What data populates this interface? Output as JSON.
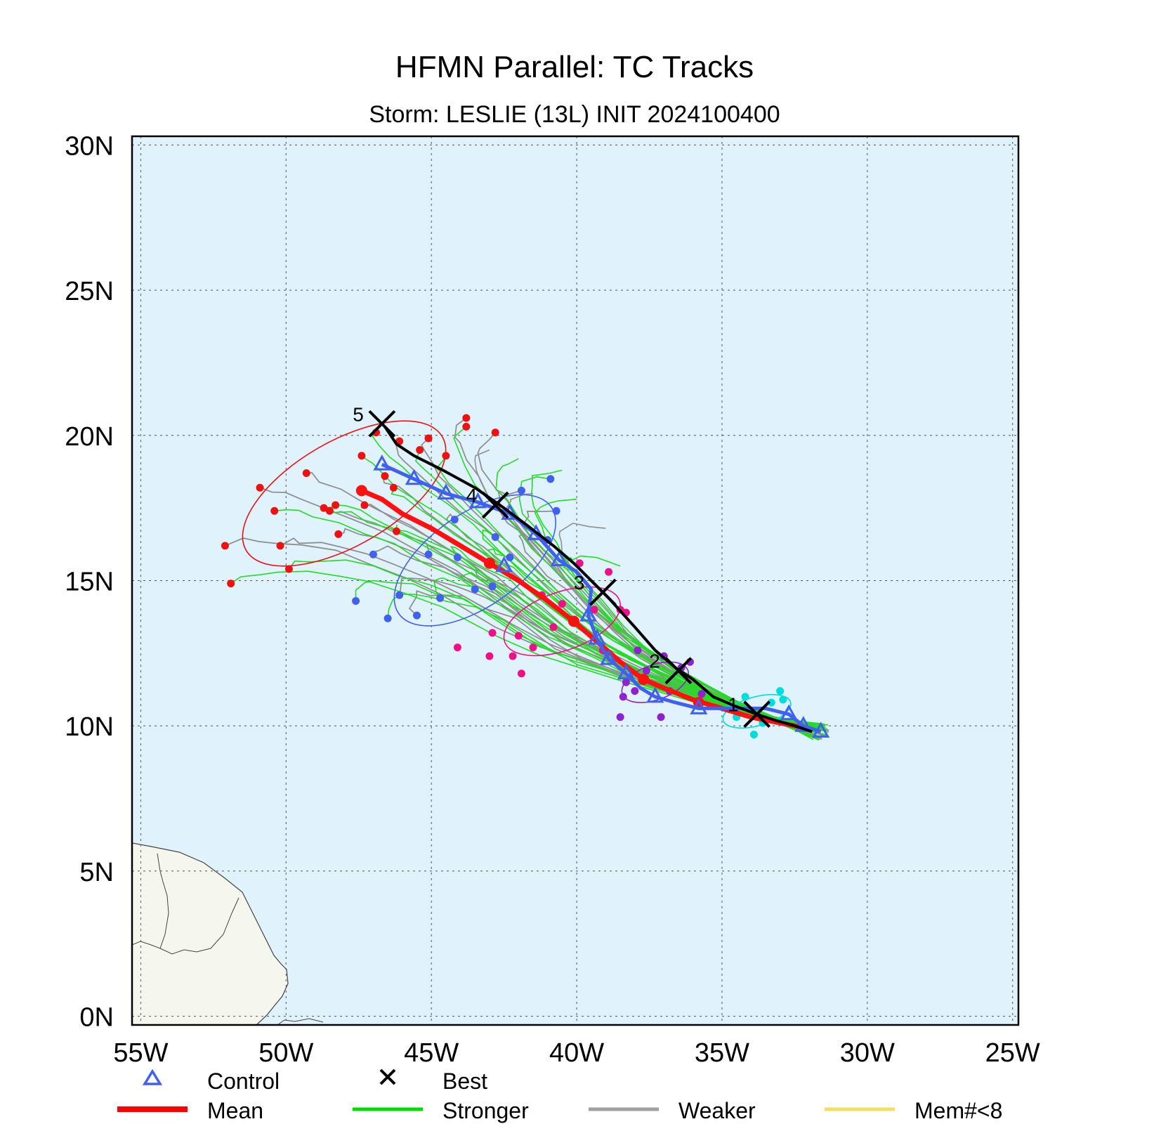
{
  "title": "HFMN Parallel: TC Tracks",
  "subtitle": "Storm: LESLIE (13L) INIT 2024100400",
  "lon_ticks": [
    {
      "value": -55,
      "label": "55W"
    },
    {
      "value": -50,
      "label": "50W"
    },
    {
      "value": -45,
      "label": "45W"
    },
    {
      "value": -40,
      "label": "40W"
    },
    {
      "value": -35,
      "label": "35W"
    },
    {
      "value": -30,
      "label": "30W"
    },
    {
      "value": -25,
      "label": "25W"
    }
  ],
  "lat_ticks": [
    {
      "value": 0,
      "label": "0N"
    },
    {
      "value": 5,
      "label": "5N"
    },
    {
      "value": 10,
      "label": "10N"
    },
    {
      "value": 15,
      "label": "15N"
    },
    {
      "value": 20,
      "label": "20N"
    },
    {
      "value": 25,
      "label": "25N"
    },
    {
      "value": 30,
      "label": "30N"
    }
  ],
  "legend": [
    {
      "key": "control",
      "label": "Control",
      "symbol": "triangle",
      "color": "#4060f0"
    },
    {
      "key": "best",
      "label": "Best",
      "symbol": "x",
      "color": "#000000"
    },
    {
      "key": "mean",
      "label": "Mean",
      "symbol": "line",
      "color": "#ff0000"
    },
    {
      "key": "stronger",
      "label": "Stronger",
      "symbol": "line",
      "color": "#00dd00"
    },
    {
      "key": "weaker",
      "label": "Weaker",
      "symbol": "line",
      "color": "#a0a0a0"
    },
    {
      "key": "mem",
      "label": "Mem#<8",
      "symbol": "line",
      "color": "#f0e060"
    }
  ],
  "colors": {
    "ocean": "#e0f2fc",
    "land": "#f5f7ee",
    "grid": "#555555",
    "day1": "#00dddd",
    "day2": "#9020d0",
    "day3": "#ee1088",
    "day4": "#4060f0",
    "day5": "#ee1111"
  },
  "chart_data": {
    "type": "map-tracks",
    "lon_range": [
      -55.3,
      -24.8
    ],
    "lat_range": [
      -0.3,
      30.3
    ],
    "grid": true,
    "best_track": {
      "points": [
        [
          -31.9,
          9.8
        ],
        [
          -32.5,
          10.0
        ],
        [
          -33.2,
          10.2
        ],
        [
          -33.8,
          10.4
        ],
        [
          -34.6,
          10.7
        ],
        [
          -35.3,
          11.0
        ],
        [
          -36.0,
          11.6
        ],
        [
          -36.6,
          12.0
        ],
        [
          -37.3,
          12.6
        ],
        [
          -38.0,
          13.4
        ],
        [
          -38.9,
          14.4
        ],
        [
          -39.5,
          15.0
        ],
        [
          -40.1,
          15.6
        ],
        [
          -40.8,
          16.2
        ],
        [
          -41.7,
          16.9
        ],
        [
          -42.5,
          17.5
        ],
        [
          -43.5,
          18.2
        ],
        [
          -44.6,
          18.8
        ],
        [
          -45.6,
          19.3
        ],
        [
          -46.2,
          19.7
        ],
        [
          -46.6,
          20.3
        ]
      ],
      "day_marks": [
        {
          "label": "1",
          "lon": -33.8,
          "lat": 10.4
        },
        {
          "label": "2",
          "lon": -36.5,
          "lat": 11.9
        },
        {
          "label": "3",
          "lon": -39.1,
          "lat": 14.6
        },
        {
          "label": "4",
          "lon": -42.8,
          "lat": 17.6
        },
        {
          "label": "5",
          "lon": -46.7,
          "lat": 20.4
        }
      ]
    },
    "control_track": {
      "points": [
        [
          -31.6,
          9.8
        ],
        [
          -32.2,
          10.0
        ],
        [
          -32.7,
          10.4
        ],
        [
          -33.5,
          10.6
        ],
        [
          -34.4,
          10.6
        ],
        [
          -35.1,
          10.6
        ],
        [
          -35.8,
          10.6
        ],
        [
          -36.6,
          10.8
        ],
        [
          -37.3,
          11.0
        ],
        [
          -37.8,
          11.3
        ],
        [
          -38.3,
          11.8
        ],
        [
          -38.9,
          12.3
        ],
        [
          -39.3,
          13.0
        ],
        [
          -39.6,
          13.8
        ],
        [
          -39.5,
          14.7
        ],
        [
          -40.0,
          15.3
        ],
        [
          -40.6,
          15.7
        ],
        [
          -41.4,
          16.6
        ],
        [
          -42.3,
          17.3
        ],
        [
          -43.4,
          17.7
        ],
        [
          -44.5,
          18.0
        ],
        [
          -45.6,
          18.5
        ],
        [
          -46.7,
          19.0
        ]
      ],
      "markers": [
        [
          -31.6,
          9.8
        ],
        [
          -32.2,
          10.0
        ],
        [
          -32.7,
          10.4
        ],
        [
          -35.8,
          10.6
        ],
        [
          -37.3,
          11.0
        ],
        [
          -38.3,
          11.8
        ],
        [
          -38.9,
          12.3
        ],
        [
          -39.3,
          13.0
        ],
        [
          -39.6,
          13.8
        ],
        [
          -40.6,
          15.7
        ],
        [
          -41.4,
          16.6
        ],
        [
          -42.3,
          17.3
        ],
        [
          -43.4,
          17.7
        ],
        [
          -44.5,
          18.0
        ],
        [
          -45.6,
          18.5
        ],
        [
          -46.7,
          19.0
        ],
        [
          -42.5,
          15.5
        ]
      ]
    },
    "mean_track": {
      "points": [
        [
          -32.0,
          9.9
        ],
        [
          -33.0,
          10.1
        ],
        [
          -34.0,
          10.3
        ],
        [
          -35.0,
          10.6
        ],
        [
          -36.0,
          10.9
        ],
        [
          -37.0,
          11.3
        ],
        [
          -37.7,
          11.6
        ],
        [
          -38.5,
          12.2
        ],
        [
          -39.3,
          12.9
        ],
        [
          -40.1,
          13.6
        ],
        [
          -41.0,
          14.3
        ],
        [
          -42.0,
          15.0
        ],
        [
          -43.0,
          15.6
        ],
        [
          -44.0,
          16.2
        ],
        [
          -45.0,
          16.8
        ],
        [
          -46.0,
          17.3
        ],
        [
          -46.7,
          17.8
        ],
        [
          -47.4,
          18.1
        ]
      ]
    },
    "uncertainty_ellipses": [
      {
        "day": 1,
        "center": [
          -33.8,
          10.5
        ],
        "rx": 1.2,
        "ry": 0.5,
        "angle": -15
      },
      {
        "day": 2,
        "center": [
          -37.3,
          11.5
        ],
        "rx": 1.2,
        "ry": 0.6,
        "angle": -20
      },
      {
        "day": 3,
        "center": [
          -40.5,
          13.6
        ],
        "rx": 2.1,
        "ry": 1.0,
        "angle": -20
      },
      {
        "day": 4,
        "center": [
          -43.5,
          15.7
        ],
        "rx": 3.2,
        "ry": 1.6,
        "angle": -35
      },
      {
        "day": 5,
        "center": [
          -48.0,
          18.0
        ],
        "rx": 3.9,
        "ry": 1.8,
        "angle": -30
      }
    ],
    "member_day_points": {
      "day1": [
        [
          -34.5,
          10.3
        ],
        [
          -33.9,
          9.7
        ],
        [
          -33.3,
          10.8
        ],
        [
          -34.2,
          11.0
        ],
        [
          -33.0,
          11.2
        ],
        [
          -32.9,
          10.9
        ],
        [
          -34.7,
          10.6
        ],
        [
          -33.6,
          10.1
        ]
      ],
      "day2": [
        [
          -36.4,
          12.0
        ],
        [
          -37.0,
          12.4
        ],
        [
          -37.9,
          12.6
        ],
        [
          -38.3,
          11.5
        ],
        [
          -37.6,
          11.9
        ],
        [
          -38.0,
          11.2
        ],
        [
          -38.5,
          10.3
        ],
        [
          -37.1,
          10.3
        ],
        [
          -38.4,
          11.0
        ],
        [
          -36.8,
          11.2
        ],
        [
          -36.1,
          12.2
        ],
        [
          -35.7,
          11.1
        ]
      ],
      "day3": [
        [
          -38.9,
          15.3
        ],
        [
          -38.5,
          14.0
        ],
        [
          -39.9,
          15.6
        ],
        [
          -40.5,
          14.2
        ],
        [
          -39.4,
          14.0
        ],
        [
          -41.2,
          14.5
        ],
        [
          -41.5,
          12.7
        ],
        [
          -42.2,
          12.4
        ],
        [
          -42.9,
          13.2
        ],
        [
          -41.9,
          11.8
        ],
        [
          -44.1,
          12.7
        ],
        [
          -43.0,
          12.4
        ],
        [
          -39.1,
          12.6
        ],
        [
          -38.3,
          13.9
        ],
        [
          -40.8,
          13.4
        ],
        [
          -42.0,
          13.1
        ]
      ],
      "day4": [
        [
          -41.9,
          18.1
        ],
        [
          -40.9,
          18.5
        ],
        [
          -40.7,
          17.4
        ],
        [
          -42.8,
          16.5
        ],
        [
          -44.2,
          17.1
        ],
        [
          -44.1,
          15.8
        ],
        [
          -45.1,
          15.9
        ],
        [
          -44.7,
          14.4
        ],
        [
          -46.1,
          14.5
        ],
        [
          -47.6,
          14.3
        ],
        [
          -47.0,
          15.9
        ],
        [
          -46.5,
          13.7
        ],
        [
          -45.5,
          13.8
        ],
        [
          -43.5,
          14.7
        ],
        [
          -42.9,
          14.8
        ],
        [
          -42.3,
          15.8
        ],
        [
          -41.0,
          16.4
        ]
      ],
      "day5": [
        [
          -52.1,
          16.2
        ],
        [
          -51.9,
          14.9
        ],
        [
          -50.9,
          18.2
        ],
        [
          -50.4,
          17.4
        ],
        [
          -50.2,
          16.2
        ],
        [
          -49.9,
          15.4
        ],
        [
          -49.3,
          18.7
        ],
        [
          -48.7,
          17.5
        ],
        [
          -48.5,
          17.4
        ],
        [
          -48.3,
          17.6
        ],
        [
          -48.2,
          16.6
        ],
        [
          -47.4,
          19.3
        ],
        [
          -47.3,
          17.6
        ],
        [
          -46.9,
          20.1
        ],
        [
          -46.6,
          18.6
        ],
        [
          -46.3,
          18.2
        ],
        [
          -46.1,
          19.8
        ],
        [
          -45.4,
          19.5
        ],
        [
          -45.1,
          19.9
        ],
        [
          -44.5,
          19.3
        ],
        [
          -43.8,
          20.6
        ],
        [
          -43.8,
          20.3
        ],
        [
          -42.8,
          20.1
        ],
        [
          -46.2,
          16.7
        ]
      ]
    }
  }
}
